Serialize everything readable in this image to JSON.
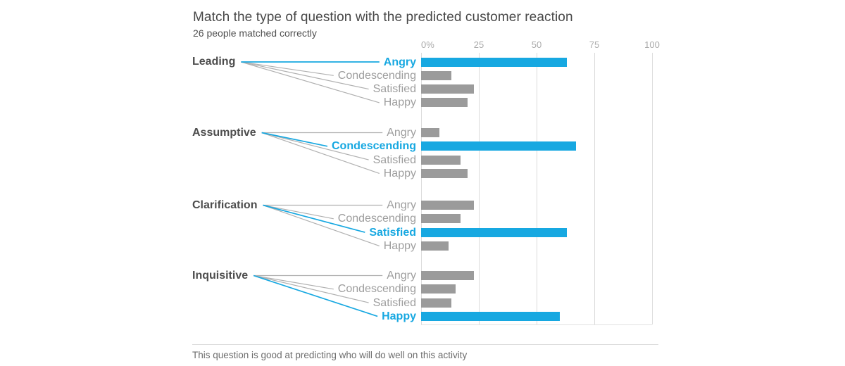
{
  "header": {
    "title": "Match the type of question with the predicted customer reaction",
    "subtitle": "26 people matched correctly"
  },
  "footer": {
    "note": "This question is good at predicting who will do well on this activity"
  },
  "chart_data": {
    "type": "bar",
    "orientation": "horizontal",
    "title": "Match the type of question with the predicted customer reaction",
    "subtitle": "26 people matched correctly",
    "unit": "% of people",
    "xlim": [
      0,
      100
    ],
    "grid": true,
    "x_ticks": [
      {
        "value": 0,
        "label": "0%"
      },
      {
        "value": 25,
        "label": "25"
      },
      {
        "value": 50,
        "label": "50"
      },
      {
        "value": 75,
        "label": "75"
      },
      {
        "value": 100,
        "label": "100"
      }
    ],
    "highlight_color": "#17a8e1",
    "bar_color": "#9b9b9b",
    "groups": [
      {
        "label": "Leading",
        "correct_match": "Angry",
        "rows": [
          {
            "reaction": "Angry",
            "value": 63,
            "highlighted": true
          },
          {
            "reaction": "Condescending",
            "value": 13,
            "highlighted": false
          },
          {
            "reaction": "Satisfied",
            "value": 23,
            "highlighted": false
          },
          {
            "reaction": "Happy",
            "value": 20,
            "highlighted": false
          }
        ]
      },
      {
        "label": "Assumptive",
        "correct_match": "Condescending",
        "rows": [
          {
            "reaction": "Angry",
            "value": 8,
            "highlighted": false
          },
          {
            "reaction": "Condescending",
            "value": 67,
            "highlighted": true
          },
          {
            "reaction": "Satisfied",
            "value": 17,
            "highlighted": false
          },
          {
            "reaction": "Happy",
            "value": 20,
            "highlighted": false
          }
        ]
      },
      {
        "label": "Clarification",
        "correct_match": "Satisfied",
        "rows": [
          {
            "reaction": "Angry",
            "value": 23,
            "highlighted": false
          },
          {
            "reaction": "Condescending",
            "value": 17,
            "highlighted": false
          },
          {
            "reaction": "Satisfied",
            "value": 63,
            "highlighted": true
          },
          {
            "reaction": "Happy",
            "value": 12,
            "highlighted": false
          }
        ]
      },
      {
        "label": "Inquisitive",
        "correct_match": "Happy",
        "rows": [
          {
            "reaction": "Angry",
            "value": 23,
            "highlighted": false
          },
          {
            "reaction": "Condescending",
            "value": 15,
            "highlighted": false
          },
          {
            "reaction": "Satisfied",
            "value": 13,
            "highlighted": false
          },
          {
            "reaction": "Happy",
            "value": 60,
            "highlighted": true
          }
        ]
      }
    ]
  }
}
